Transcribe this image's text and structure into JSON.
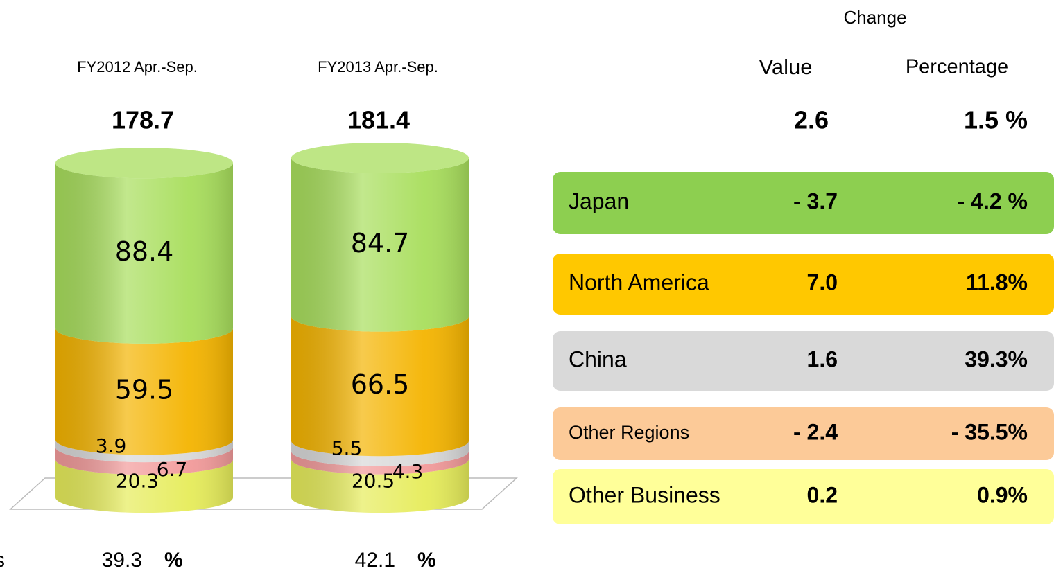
{
  "chart_data": {
    "type": "bar",
    "stacked": true,
    "categories": [
      "FY2012 Apr.-Sep.",
      "FY2013 Apr.-Sep."
    ],
    "totals": [
      178.7,
      181.4
    ],
    "series": [
      {
        "name": "Japan",
        "color": "#a8de5c",
        "values": [
          88.4,
          84.7
        ]
      },
      {
        "name": "North America",
        "color": "#f4b400",
        "values": [
          59.5,
          66.5
        ]
      },
      {
        "name": "China",
        "color": "#d8d8d8",
        "values": [
          3.9,
          5.5
        ]
      },
      {
        "name": "Other Regions",
        "color": "#f29a9a",
        "values": [
          6.7,
          4.3
        ]
      },
      {
        "name": "Other Business",
        "color": "#e6ec5a",
        "values": [
          20.3,
          20.5
        ]
      }
    ],
    "footer": {
      "label": "s",
      "values": [
        39.3,
        42.1
      ],
      "unit": "%"
    }
  },
  "change_table": {
    "title": "Change",
    "columns": [
      "Value",
      "Percentage"
    ],
    "total": [
      "2.6",
      "1.5 %"
    ],
    "rows": [
      {
        "color": "#8dcf50",
        "cells": [
          "- 3.7",
          "- 4.2 %"
        ]
      },
      {
        "color": "#ffc800",
        "cells": [
          "7.0",
          "11.8%"
        ]
      },
      {
        "color": "#d9d9d9",
        "cells": [
          "1.6",
          "39.3%"
        ]
      },
      {
        "color": "#fcca98",
        "cells": [
          "- 2.4",
          "- 35.5%"
        ]
      },
      {
        "color": "#ffff99",
        "cells": [
          "0.2",
          "0.9%"
        ]
      }
    ]
  }
}
